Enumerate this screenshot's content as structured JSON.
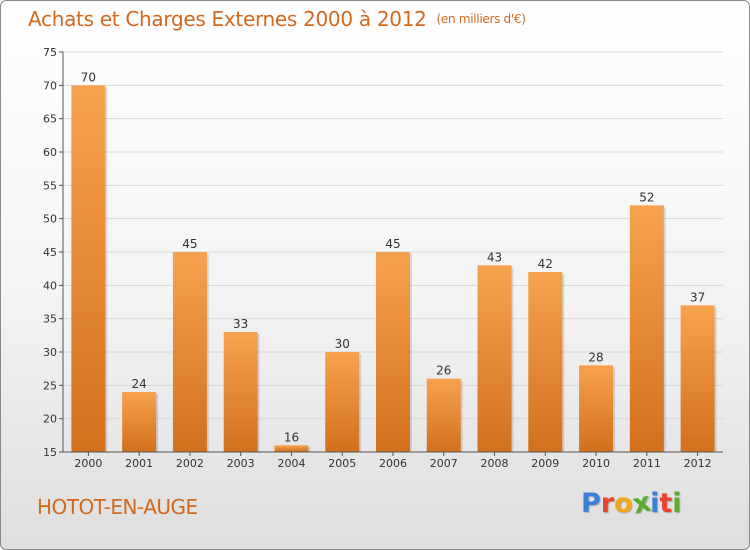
{
  "header": {
    "title": "Achats et Charges Externes 2000 à 2012",
    "subtitle": "(en milliers d'€)"
  },
  "footer": {
    "commune": "HOTOT-EN-AUGE",
    "brand": "Proxiti",
    "brand_letters": [
      {
        "char": "P",
        "color": "#3d7fd6"
      },
      {
        "char": "r",
        "color": "#e8452c"
      },
      {
        "char": "o",
        "color": "#f2a81d"
      },
      {
        "char": "x",
        "color": "#5aab2e"
      },
      {
        "char": "i",
        "color": "#3d7fd6"
      },
      {
        "char": "t",
        "color": "#e8452c"
      },
      {
        "char": "i",
        "color": "#5aab2e"
      }
    ]
  },
  "colors": {
    "accent": "#d2691e",
    "bar_light": "#f7a24f",
    "bar_dark": "#d2701c",
    "grid": "#d8d8d8"
  },
  "chart_data": {
    "type": "bar",
    "categories": [
      "2000",
      "2001",
      "2002",
      "2003",
      "2004",
      "2005",
      "2006",
      "2007",
      "2008",
      "2009",
      "2010",
      "2011",
      "2012"
    ],
    "values": [
      70,
      24,
      45,
      33,
      16,
      30,
      45,
      26,
      43,
      42,
      28,
      52,
      37
    ],
    "ylim": [
      15,
      75
    ],
    "yticks": [
      15,
      20,
      25,
      30,
      35,
      40,
      45,
      50,
      55,
      60,
      65,
      70,
      75
    ],
    "grid": true,
    "data_labels": true
  }
}
